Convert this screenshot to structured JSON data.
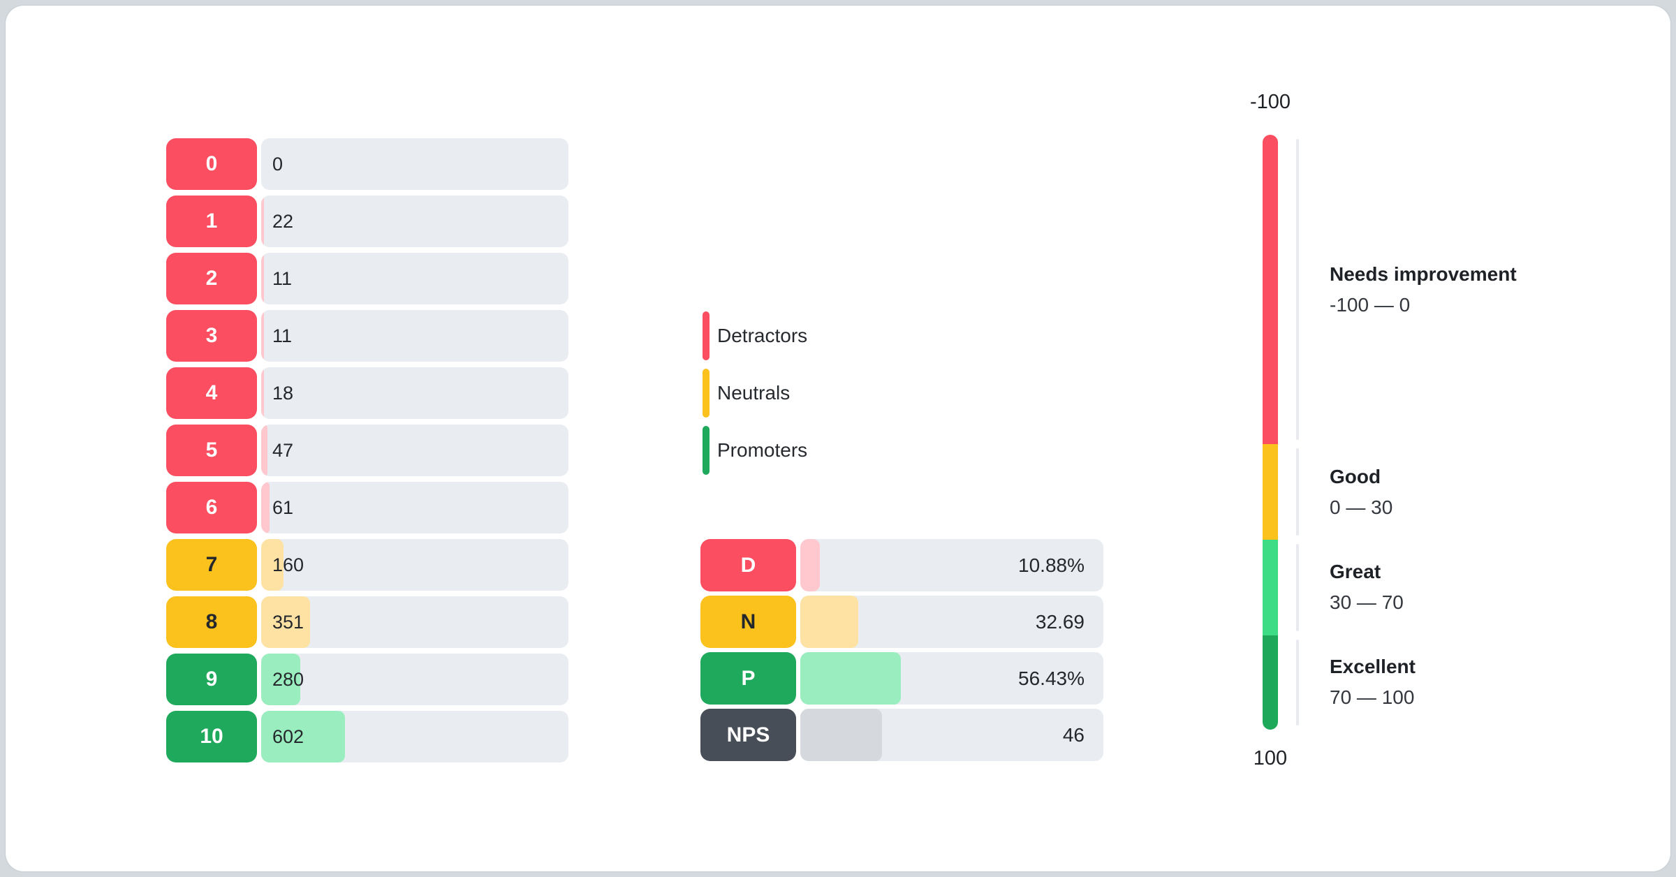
{
  "colors": {
    "detractor": "#FB4E60",
    "detractor_light": "#FFC7CE",
    "neutral": "#FBC21D",
    "neutral_light": "#FDE2A4",
    "promoter": "#1FA95C",
    "promoter_light": "#9AEDBE",
    "nps": "#474E57",
    "nps_light": "#D5D9DD",
    "great": "#3EDC84",
    "excellent": "#1EA85A",
    "track": "#E9EDF1",
    "text_dark": "#24272C",
    "text_white": "#FFFFFF"
  },
  "histogram": {
    "scale_max": 2200,
    "rows": [
      {
        "label": "0",
        "value": 0,
        "display": "0",
        "tone": "detractor"
      },
      {
        "label": "1",
        "value": 22,
        "display": "22",
        "tone": "detractor"
      },
      {
        "label": "2",
        "value": 11,
        "display": "11",
        "tone": "detractor"
      },
      {
        "label": "3",
        "value": 11,
        "display": "11",
        "tone": "detractor"
      },
      {
        "label": "4",
        "value": 18,
        "display": "18",
        "tone": "detractor"
      },
      {
        "label": "5",
        "value": 47,
        "display": "47",
        "tone": "detractor"
      },
      {
        "label": "6",
        "value": 61,
        "display": "61",
        "tone": "detractor"
      },
      {
        "label": "7",
        "value": 160,
        "display": "160",
        "tone": "neutral"
      },
      {
        "label": "8",
        "value": 351,
        "display": "351",
        "tone": "neutral"
      },
      {
        "label": "9",
        "value": 280,
        "display": "280",
        "tone": "promoter"
      },
      {
        "label": "10",
        "value": 602,
        "display": "602",
        "tone": "promoter"
      }
    ]
  },
  "legend": {
    "items": [
      {
        "label": "Detractors",
        "tone": "detractor"
      },
      {
        "label": "Neutrals",
        "tone": "neutral"
      },
      {
        "label": "Promoters",
        "tone": "promoter"
      }
    ]
  },
  "summary": {
    "scale_max": 170,
    "rows": [
      {
        "label": "D",
        "value": 10.88,
        "display": "10.88%",
        "tone": "detractor"
      },
      {
        "label": "N",
        "value": 32.69,
        "display": "32.69",
        "tone": "neutral"
      },
      {
        "label": "P",
        "value": 56.43,
        "display": "56.43%",
        "tone": "promoter"
      },
      {
        "label": "NPS",
        "value": 46,
        "display": "46",
        "tone": "nps"
      }
    ]
  },
  "gauge": {
    "top_label": "-100",
    "bottom_label": "100",
    "min": -100,
    "max": 100,
    "zones": [
      {
        "name": "Needs improvement",
        "range": "-100 — 0",
        "from": -100,
        "to": 0,
        "tone": "detractor",
        "height_pct": 52.0
      },
      {
        "name": "Good",
        "range": "0 — 30",
        "from": 0,
        "to": 30,
        "tone": "neutral",
        "height_pct": 16.1
      },
      {
        "name": "Great",
        "range": "30 — 70",
        "from": 30,
        "to": 70,
        "tone": "great",
        "height_pct": 16.0
      },
      {
        "name": "Excellent",
        "range": "70 — 100",
        "from": 70,
        "to": 100,
        "tone": "excellent",
        "height_pct": 15.9
      }
    ]
  },
  "chart_data": [
    {
      "type": "bar",
      "orientation": "horizontal",
      "title": "",
      "categories": [
        "0",
        "1",
        "2",
        "3",
        "4",
        "5",
        "6",
        "7",
        "8",
        "9",
        "10"
      ],
      "values": [
        0,
        22,
        11,
        11,
        18,
        47,
        61,
        160,
        351,
        280,
        602
      ],
      "groups": [
        "Detractors",
        "Detractors",
        "Detractors",
        "Detractors",
        "Detractors",
        "Detractors",
        "Detractors",
        "Neutrals",
        "Neutrals",
        "Promoters",
        "Promoters"
      ],
      "legend": [
        "Detractors",
        "Neutrals",
        "Promoters"
      ],
      "legend_position": "right",
      "xlim": [
        0,
        2200
      ],
      "grid": false
    },
    {
      "type": "bar",
      "orientation": "horizontal",
      "categories": [
        "D",
        "N",
        "P",
        "NPS"
      ],
      "values": [
        10.88,
        32.69,
        56.43,
        46
      ],
      "value_labels": [
        "10.88%",
        "32.69",
        "56.43%",
        "46"
      ],
      "xlim": [
        0,
        170
      ],
      "grid": false
    },
    {
      "type": "gauge",
      "orientation": "vertical",
      "min": -100,
      "max": 100,
      "tick_labels": [
        "-100",
        "100"
      ],
      "zones": [
        {
          "label": "Needs improvement",
          "from": -100,
          "to": 0
        },
        {
          "label": "Good",
          "from": 0,
          "to": 30
        },
        {
          "label": "Great",
          "from": 30,
          "to": 70
        },
        {
          "label": "Excellent",
          "from": 70,
          "to": 100
        }
      ]
    }
  ]
}
